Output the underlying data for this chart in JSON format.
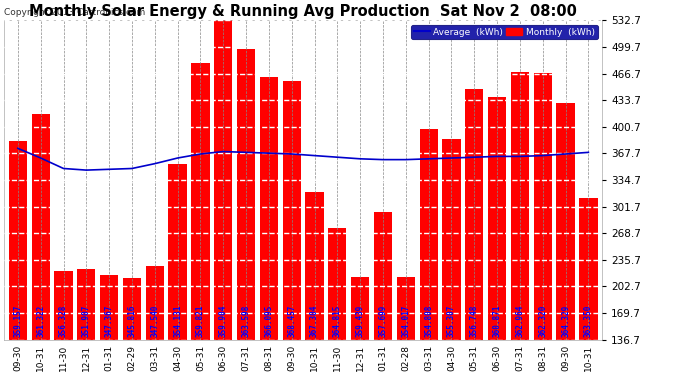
{
  "title": "Monthly Solar Energy & Running Avg Production  Sat Nov 2  08:00",
  "copyright": "Copyright 2013 Cartronics.com",
  "categories": [
    "09-30",
    "10-31",
    "11-30",
    "12-31",
    "01-31",
    "02-29",
    "03-31",
    "04-30",
    "05-31",
    "06-30",
    "07-31",
    "08-31",
    "09-30",
    "10-31",
    "11-30",
    "12-31",
    "01-31",
    "02-28",
    "03-31",
    "04-30",
    "05-31",
    "06-30",
    "07-31",
    "08-31",
    "09-30",
    "10-31"
  ],
  "monthly_values": [
    383,
    416,
    222,
    224,
    217,
    213,
    228,
    354,
    480,
    534,
    497,
    463,
    457,
    320,
    275,
    215,
    295,
    215,
    398,
    385,
    448,
    438,
    469,
    468,
    430,
    313
  ],
  "average_values": [
    374,
    362,
    349,
    347,
    348,
    349,
    355,
    362,
    367,
    370,
    369,
    368,
    367,
    365,
    363,
    361,
    360,
    360,
    361,
    362,
    363,
    364,
    364,
    365,
    367,
    369
  ],
  "bar_labels": [
    "359.157",
    "361.322",
    "356.328",
    "351.907",
    "347.367",
    "345.816",
    "347.540",
    "354.131",
    "359.821",
    "359.904",
    "363.598",
    "366.095",
    "368.457",
    "367.304",
    "364.815",
    "359.439",
    "357.699",
    "354.017",
    "354.808",
    "355.307",
    "356.748",
    "360.871",
    "362.964",
    "362.320",
    "364.329",
    "363.350"
  ],
  "bar_color": "#ff0000",
  "avg_line_color": "#0000cc",
  "background_color": "#ffffff",
  "plot_bg_color": "#ffffff",
  "grid_color": "#888888",
  "text_color": "#000000",
  "bar_label_color": "#0000ff",
  "y_min": 136.7,
  "y_max": 532.7,
  "y_ticks": [
    136.7,
    169.7,
    202.7,
    235.7,
    268.7,
    301.7,
    334.7,
    367.7,
    400.7,
    433.7,
    466.7,
    499.7,
    532.7
  ],
  "legend_avg_label": "Average  (kWh)",
  "legend_monthly_label": "Monthly  (kWh)",
  "title_fontsize": 10.5,
  "label_fontsize": 5.5,
  "tick_fontsize": 6.5,
  "ytick_fontsize": 7.5,
  "figwidth": 6.9,
  "figheight": 3.75,
  "dpi": 100
}
